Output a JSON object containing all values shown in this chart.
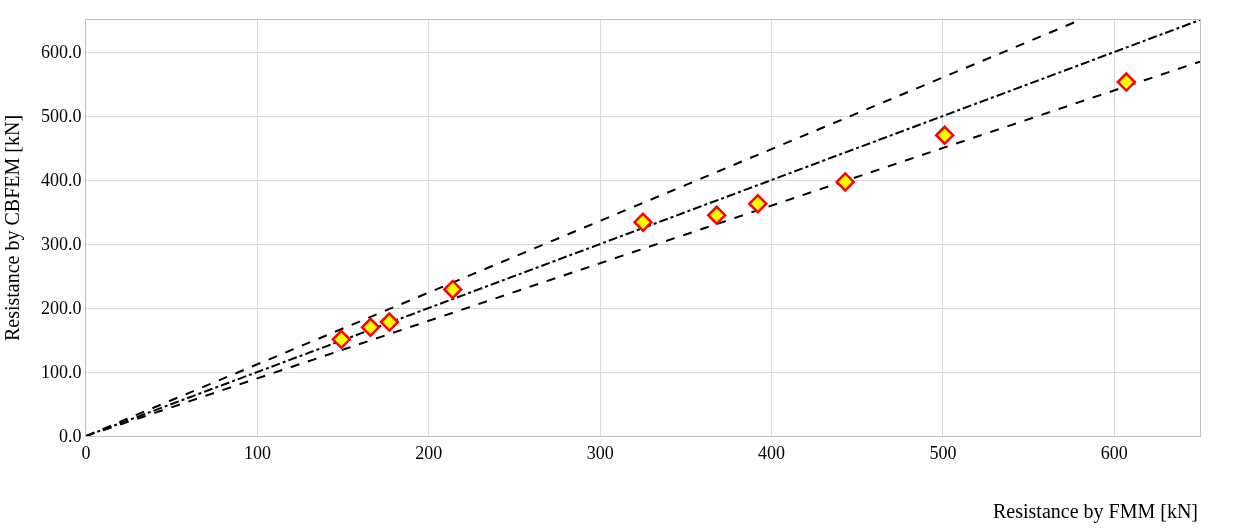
{
  "chart_data": {
    "type": "scatter",
    "xlabel": "Resistance by FMM [kN]",
    "ylabel": "Resistance by CBFEM [kN]",
    "xlim": [
      0,
      650
    ],
    "ylim": [
      0,
      650
    ],
    "xticks": [
      0,
      100,
      200,
      300,
      400,
      500,
      600
    ],
    "yticks": [
      {
        "value": 0,
        "label": "0.0"
      },
      {
        "value": 100,
        "label": "100.0"
      },
      {
        "value": 200,
        "label": "200.0"
      },
      {
        "value": 300,
        "label": "300.0"
      },
      {
        "value": 400,
        "label": "400.0"
      },
      {
        "value": 500,
        "label": "500.0"
      },
      {
        "value": 600,
        "label": "600.0"
      }
    ],
    "grid": true,
    "series": [
      {
        "type": "line",
        "color": "#000000",
        "line_style": "dashed",
        "marker": "none",
        "x": [
          0,
          580
        ],
        "values": [
          0,
          650
        ]
      },
      {
        "type": "line",
        "color": "#000000",
        "line_style": "dashdot",
        "marker": "none",
        "x": [
          0,
          650
        ],
        "values": [
          0,
          650
        ]
      },
      {
        "type": "line",
        "color": "#000000",
        "line_style": "dashed",
        "marker": "none",
        "x": [
          0,
          650
        ],
        "values": [
          0,
          585
        ]
      },
      {
        "color": "#ffff00",
        "marker": "diamond",
        "x": [
          149,
          166,
          177,
          214,
          325,
          368,
          392,
          443,
          501,
          607
        ],
        "values": [
          151,
          170,
          178,
          229,
          334,
          345,
          363,
          397,
          470,
          553
        ]
      }
    ]
  }
}
